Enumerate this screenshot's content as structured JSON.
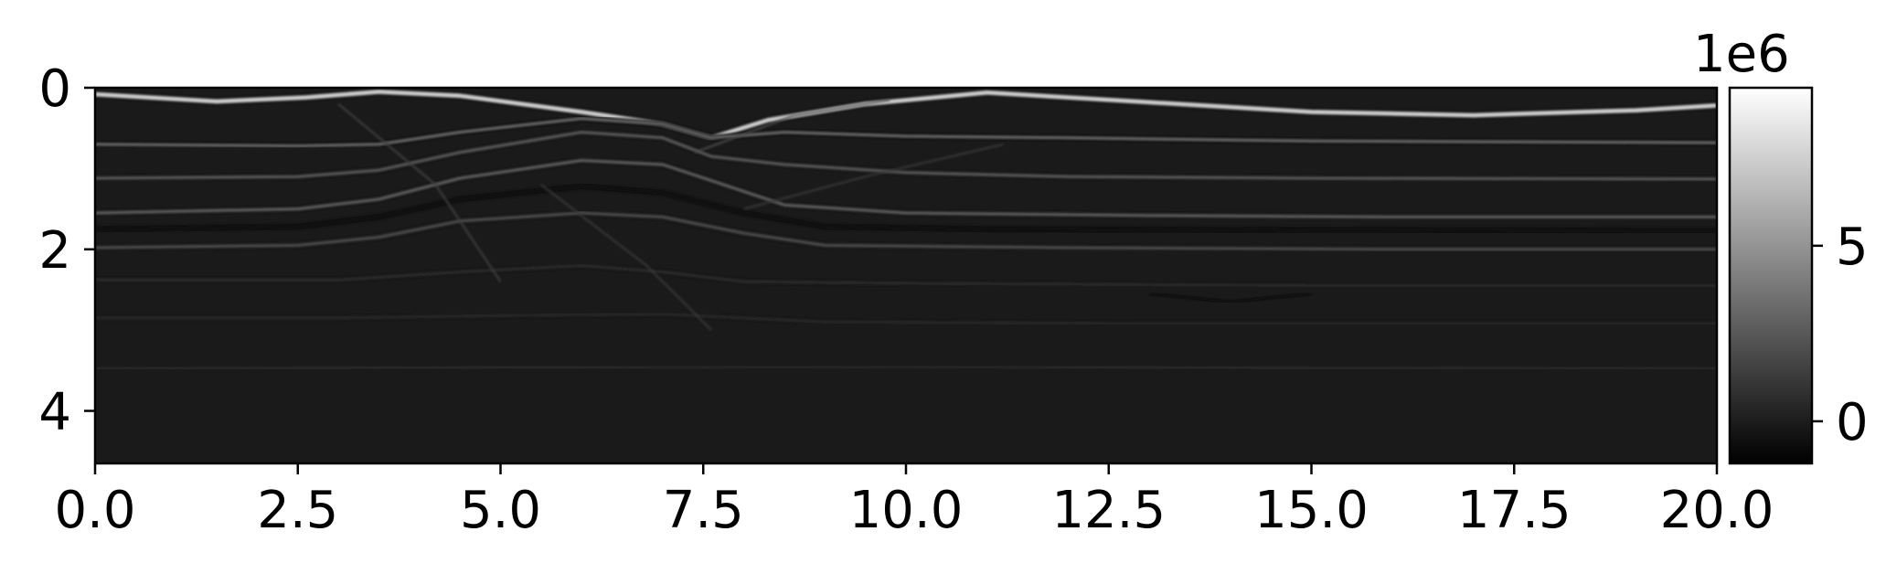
{
  "chart_data": {
    "type": "heatmap",
    "title": "",
    "xlabel": "",
    "ylabel": "",
    "xlim": [
      0.0,
      20.0
    ],
    "ylim": [
      4.65,
      0.0
    ],
    "x_ticks": [
      "0.0",
      "2.5",
      "5.0",
      "7.5",
      "10.0",
      "12.5",
      "15.0",
      "17.5",
      "20.0"
    ],
    "x_tick_values": [
      0.0,
      2.5,
      5.0,
      7.5,
      10.0,
      12.5,
      15.0,
      17.5,
      20.0
    ],
    "y_ticks": [
      "0",
      "2",
      "4"
    ],
    "y_tick_values": [
      0,
      2,
      4
    ],
    "colormap": "gray",
    "background_value": 0.0,
    "colorbar": {
      "range": [
        -1.2,
        9.5
      ],
      "ticks": [
        "0",
        "5"
      ],
      "tick_values": [
        0,
        5
      ],
      "offset_text": "1e6",
      "colors": [
        "#000000",
        "#ffffff"
      ]
    },
    "reflectors": [
      {
        "depth": [
          [
            0,
            0.08
          ],
          [
            1.5,
            0.17
          ],
          [
            2.6,
            0.12
          ],
          [
            3.5,
            0.05
          ],
          [
            4.5,
            0.1
          ],
          [
            6,
            0.3
          ],
          [
            7,
            0.45
          ],
          [
            7.6,
            0.62
          ],
          [
            8.3,
            0.4
          ],
          [
            9.5,
            0.2
          ],
          [
            11,
            0.06
          ],
          [
            13,
            0.18
          ],
          [
            15,
            0.3
          ],
          [
            17,
            0.34
          ],
          [
            19,
            0.28
          ],
          [
            20,
            0.22
          ]
        ],
        "amplitude": 7.5,
        "thickness": 5
      },
      {
        "depth": [
          [
            0,
            0.7
          ],
          [
            2.5,
            0.72
          ],
          [
            3.5,
            0.7
          ],
          [
            4.5,
            0.55
          ],
          [
            6,
            0.38
          ],
          [
            7,
            0.45
          ],
          [
            7.6,
            0.62
          ],
          [
            8.5,
            0.55
          ],
          [
            10,
            0.6
          ],
          [
            12,
            0.62
          ],
          [
            15,
            0.66
          ],
          [
            20,
            0.68
          ]
        ],
        "amplitude": 3.5,
        "thickness": 3
      },
      {
        "depth": [
          [
            0,
            1.12
          ],
          [
            2.5,
            1.1
          ],
          [
            3.5,
            1.02
          ],
          [
            4.5,
            0.8
          ],
          [
            6,
            0.55
          ],
          [
            7,
            0.62
          ],
          [
            7.6,
            0.85
          ],
          [
            8.5,
            0.95
          ],
          [
            10,
            1.05
          ],
          [
            12,
            1.1
          ],
          [
            15,
            1.12
          ],
          [
            20,
            1.13
          ]
        ],
        "amplitude": 2.8,
        "thickness": 3
      },
      {
        "depth": [
          [
            0,
            1.55
          ],
          [
            2.5,
            1.5
          ],
          [
            3.5,
            1.38
          ],
          [
            4.5,
            1.12
          ],
          [
            6,
            0.9
          ],
          [
            7,
            0.95
          ],
          [
            7.6,
            1.15
          ],
          [
            8.5,
            1.45
          ],
          [
            10,
            1.55
          ],
          [
            13,
            1.58
          ],
          [
            16,
            1.6
          ],
          [
            20,
            1.6
          ]
        ],
        "amplitude": 3.0,
        "thickness": 3
      },
      {
        "depth": [
          [
            0,
            1.75
          ],
          [
            2.5,
            1.72
          ],
          [
            3.5,
            1.6
          ],
          [
            4.5,
            1.38
          ],
          [
            6,
            1.22
          ],
          [
            7,
            1.3
          ],
          [
            8,
            1.55
          ],
          [
            9,
            1.72
          ],
          [
            11,
            1.75
          ],
          [
            15,
            1.76
          ],
          [
            20,
            1.77
          ]
        ],
        "amplitude": -0.9,
        "thickness": 4
      },
      {
        "depth": [
          [
            0,
            1.98
          ],
          [
            2.5,
            1.95
          ],
          [
            3.5,
            1.85
          ],
          [
            4.5,
            1.65
          ],
          [
            6,
            1.55
          ],
          [
            7,
            1.6
          ],
          [
            8,
            1.8
          ],
          [
            9,
            1.95
          ],
          [
            12,
            1.98
          ],
          [
            16,
            2.0
          ],
          [
            20,
            2.0
          ]
        ],
        "amplitude": 2.2,
        "thickness": 3
      },
      {
        "depth": [
          [
            0,
            2.38
          ],
          [
            3,
            2.38
          ],
          [
            4.5,
            2.28
          ],
          [
            6,
            2.2
          ],
          [
            7,
            2.28
          ],
          [
            8,
            2.4
          ],
          [
            10,
            2.42
          ],
          [
            15,
            2.45
          ],
          [
            20,
            2.45
          ]
        ],
        "amplitude": 1.0,
        "thickness": 2
      },
      {
        "depth": [
          [
            0,
            2.85
          ],
          [
            3,
            2.85
          ],
          [
            5,
            2.82
          ],
          [
            7,
            2.8
          ],
          [
            9,
            2.9
          ],
          [
            13,
            2.92
          ],
          [
            20,
            2.92
          ]
        ],
        "amplitude": 0.9,
        "thickness": 2
      },
      {
        "depth": [
          [
            0,
            3.48
          ],
          [
            5,
            3.46
          ],
          [
            10,
            3.45
          ],
          [
            15,
            3.47
          ],
          [
            20,
            3.48
          ]
        ],
        "amplitude": 0.7,
        "thickness": 2
      }
    ],
    "faults": [
      {
        "points": [
          [
            3.0,
            0.2
          ],
          [
            4.2,
            1.2
          ],
          [
            5.0,
            2.4
          ]
        ],
        "amplitude": 1.5
      },
      {
        "points": [
          [
            5.5,
            1.2
          ],
          [
            6.8,
            2.2
          ],
          [
            7.6,
            3.0
          ]
        ],
        "amplitude": 1.2
      },
      {
        "points": [
          [
            7.4,
            0.8
          ],
          [
            8.6,
            0.35
          ],
          [
            9.8,
            0.15
          ]
        ],
        "amplitude": 2.0
      },
      {
        "points": [
          [
            8.0,
            1.5
          ],
          [
            9.5,
            1.1
          ],
          [
            11.2,
            0.7
          ]
        ],
        "amplitude": 1.2
      },
      {
        "points": [
          [
            13.0,
            2.55
          ],
          [
            14.0,
            2.65
          ],
          [
            15.0,
            2.55
          ]
        ],
        "amplitude": -0.7
      }
    ]
  }
}
